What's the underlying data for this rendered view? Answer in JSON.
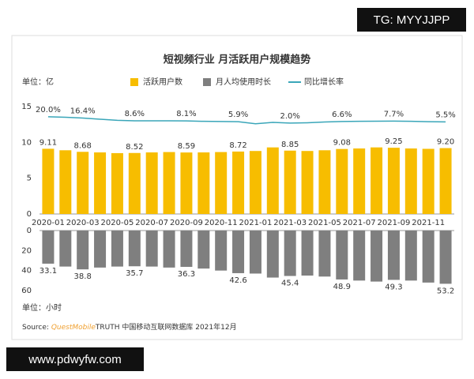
{
  "chart_data": [
    {
      "type": "bar",
      "title": "短视频行业 月活跃用户规模趋势",
      "y_unit": "单位：亿",
      "categories": [
        "2020-01",
        null,
        "2020-03",
        null,
        "2020-05",
        null,
        "2020-07",
        null,
        "2020-09",
        null,
        "2020-11",
        null,
        "2021-01",
        null,
        "2021-03",
        null,
        "2021-05",
        null,
        "2021-07",
        null,
        "2021-09",
        null,
        "2021-11",
        null
      ],
      "ylim": [
        0,
        15
      ],
      "yticks": [
        0,
        5,
        10,
        15
      ],
      "y2lim": [
        -257,
        49
      ],
      "series": [
        {
          "name": "活跃用户数",
          "type": "bar",
          "color": "#f7bd00",
          "values": [
            9.11,
            8.9,
            8.68,
            8.6,
            8.5,
            8.52,
            8.6,
            8.65,
            8.59,
            8.6,
            8.65,
            8.72,
            8.8,
            9.3,
            8.85,
            8.8,
            8.9,
            9.08,
            9.15,
            9.3,
            9.25,
            9.15,
            9.1,
            9.2
          ],
          "value_labels": [
            "9.11",
            null,
            "8.68",
            null,
            null,
            "8.52",
            null,
            null,
            "8.59",
            null,
            null,
            "8.72",
            null,
            null,
            "8.85",
            null,
            null,
            "9.08",
            null,
            null,
            "9.25",
            null,
            null,
            "9.20"
          ]
        },
        {
          "name": "同比增长率",
          "type": "line",
          "axis": "y2",
          "color": "#3aa6b9",
          "values": [
            20.0,
            18.5,
            16.4,
            13,
            10,
            8.6,
            8.6,
            8.4,
            8.1,
            7,
            6.5,
            5.9,
            0,
            4,
            2.0,
            3,
            5,
            6.6,
            7,
            7.5,
            7.7,
            7,
            6,
            5.5
          ],
          "value_labels": [
            "20.0%",
            null,
            "16.4%",
            null,
            null,
            "8.6%",
            null,
            null,
            "8.1%",
            null,
            null,
            "5.9%",
            null,
            null,
            "2.0%",
            null,
            null,
            "6.6%",
            null,
            null,
            "7.7%",
            null,
            null,
            "5.5%"
          ]
        }
      ]
    },
    {
      "type": "bar",
      "y_unit": "单位：小时",
      "ylim": [
        60,
        0
      ],
      "yticks": [
        0,
        20,
        40,
        60
      ],
      "series": [
        {
          "name": "月人均使用时长",
          "type": "bar",
          "color": "#7f7f7f",
          "values": [
            33.1,
            36,
            38.8,
            37,
            36,
            35.7,
            36,
            37,
            36.3,
            38,
            40,
            42.6,
            43,
            47,
            45.4,
            45,
            46,
            48.9,
            50,
            51,
            49.3,
            50,
            52,
            53.2
          ],
          "value_labels": [
            "33.1",
            null,
            "38.8",
            null,
            null,
            "35.7",
            null,
            null,
            "36.3",
            null,
            null,
            "42.6",
            null,
            null,
            "45.4",
            null,
            null,
            "48.9",
            null,
            null,
            "49.3",
            null,
            null,
            "53.2"
          ]
        }
      ]
    }
  ],
  "source": {
    "label": "Source:",
    "brand": "QuestMobile",
    "text": "TRUTH 中国移动互联网数据库 2021年12月"
  },
  "watermarks": [
    "TG: MYYJJPP",
    "www.pdwyfw.com"
  ]
}
